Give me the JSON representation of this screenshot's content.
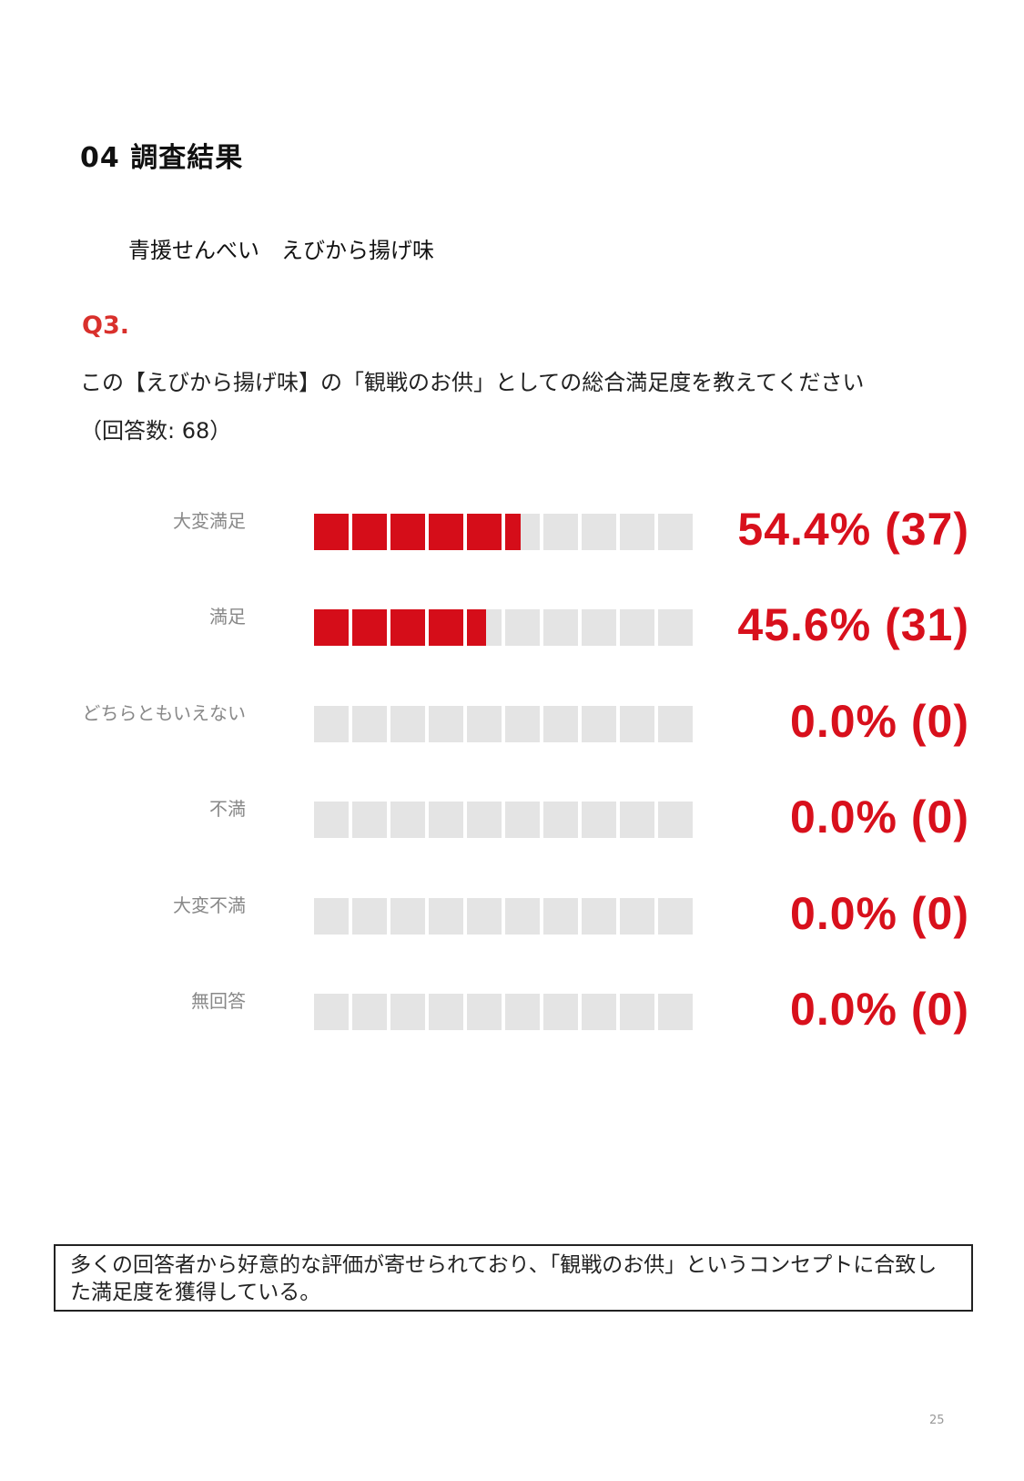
{
  "section_title": "04  調査結果",
  "product_name": "青援せんべい　えびから揚げ味",
  "question": {
    "number": "Q3.",
    "text": "この【えびから揚げ味】の「観戦のお供」としての総合満足度を教えてください",
    "respondents": "（回答数: 68）"
  },
  "colors": {
    "accent": "#d8101c",
    "bar_fill": "#d50d19",
    "bar_empty": "#e4e4e4"
  },
  "chart_data": {
    "type": "bar",
    "orientation": "horizontal",
    "segments": 10,
    "categories": [
      "大変満足",
      "満足",
      "どちらともいえない",
      "不満",
      "大変不満",
      "無回答"
    ],
    "values": [
      54.4,
      45.6,
      0.0,
      0.0,
      0.0,
      0.0
    ],
    "counts": [
      37,
      31,
      0,
      0,
      0,
      0
    ],
    "value_labels": [
      "54.4% (37)",
      "45.6% (31)",
      "0.0% (0)",
      "0.0% (0)",
      "0.0% (0)",
      "0.0% (0)"
    ],
    "xlim": [
      0,
      100
    ]
  },
  "summary": "多くの回答者から好意的な評価が寄せられており、「観戦のお供」というコンセプトに合致した満足度を獲得している。",
  "page_number": "25"
}
